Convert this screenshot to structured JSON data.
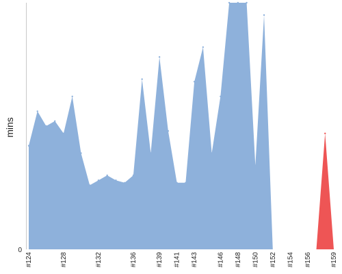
{
  "chart_data": {
    "type": "area",
    "xlabel": "",
    "ylabel": "mins",
    "y_tick_labels": [
      "0"
    ],
    "x": [
      "#124",
      "#125",
      "#126",
      "#127",
      "#128",
      "#129",
      "#130",
      "#131",
      "#132",
      "#133",
      "#134",
      "#135",
      "#136",
      "#137",
      "#138",
      "#139",
      "#140",
      "#141",
      "#142",
      "#143",
      "#144",
      "#145",
      "#146",
      "#147",
      "#148",
      "#149",
      "#150",
      "#151",
      "#152",
      "#153",
      "#154",
      "#155",
      "#156",
      "#157",
      "#158",
      "#159"
    ],
    "x_tick_labels": [
      "#124",
      "#128",
      "#132",
      "#136",
      "#139",
      "#141",
      "#143",
      "#146",
      "#148",
      "#150",
      "#152",
      "#154",
      "#156",
      "#159"
    ],
    "series": [
      {
        "color": "#8eb1db",
        "values": [
          42,
          56,
          50,
          52,
          47,
          62,
          39,
          26,
          28,
          30,
          28,
          27,
          30,
          69,
          39,
          78,
          48,
          27,
          27,
          68,
          82,
          39,
          62,
          101,
          101,
          101,
          34,
          95,
          0,
          0,
          0,
          0,
          0,
          0,
          0,
          0
        ]
      },
      {
        "color": "#ee5555",
        "values": [
          0,
          0,
          0,
          0,
          0,
          0,
          0,
          0,
          0,
          0,
          0,
          0,
          0,
          0,
          0,
          0,
          0,
          0,
          0,
          0,
          0,
          0,
          0,
          0,
          0,
          0,
          0,
          0,
          0,
          0,
          0,
          0,
          0,
          0,
          47,
          0
        ]
      }
    ],
    "ylim": [
      0,
      100
    ],
    "grid": false,
    "legend": "none"
  }
}
